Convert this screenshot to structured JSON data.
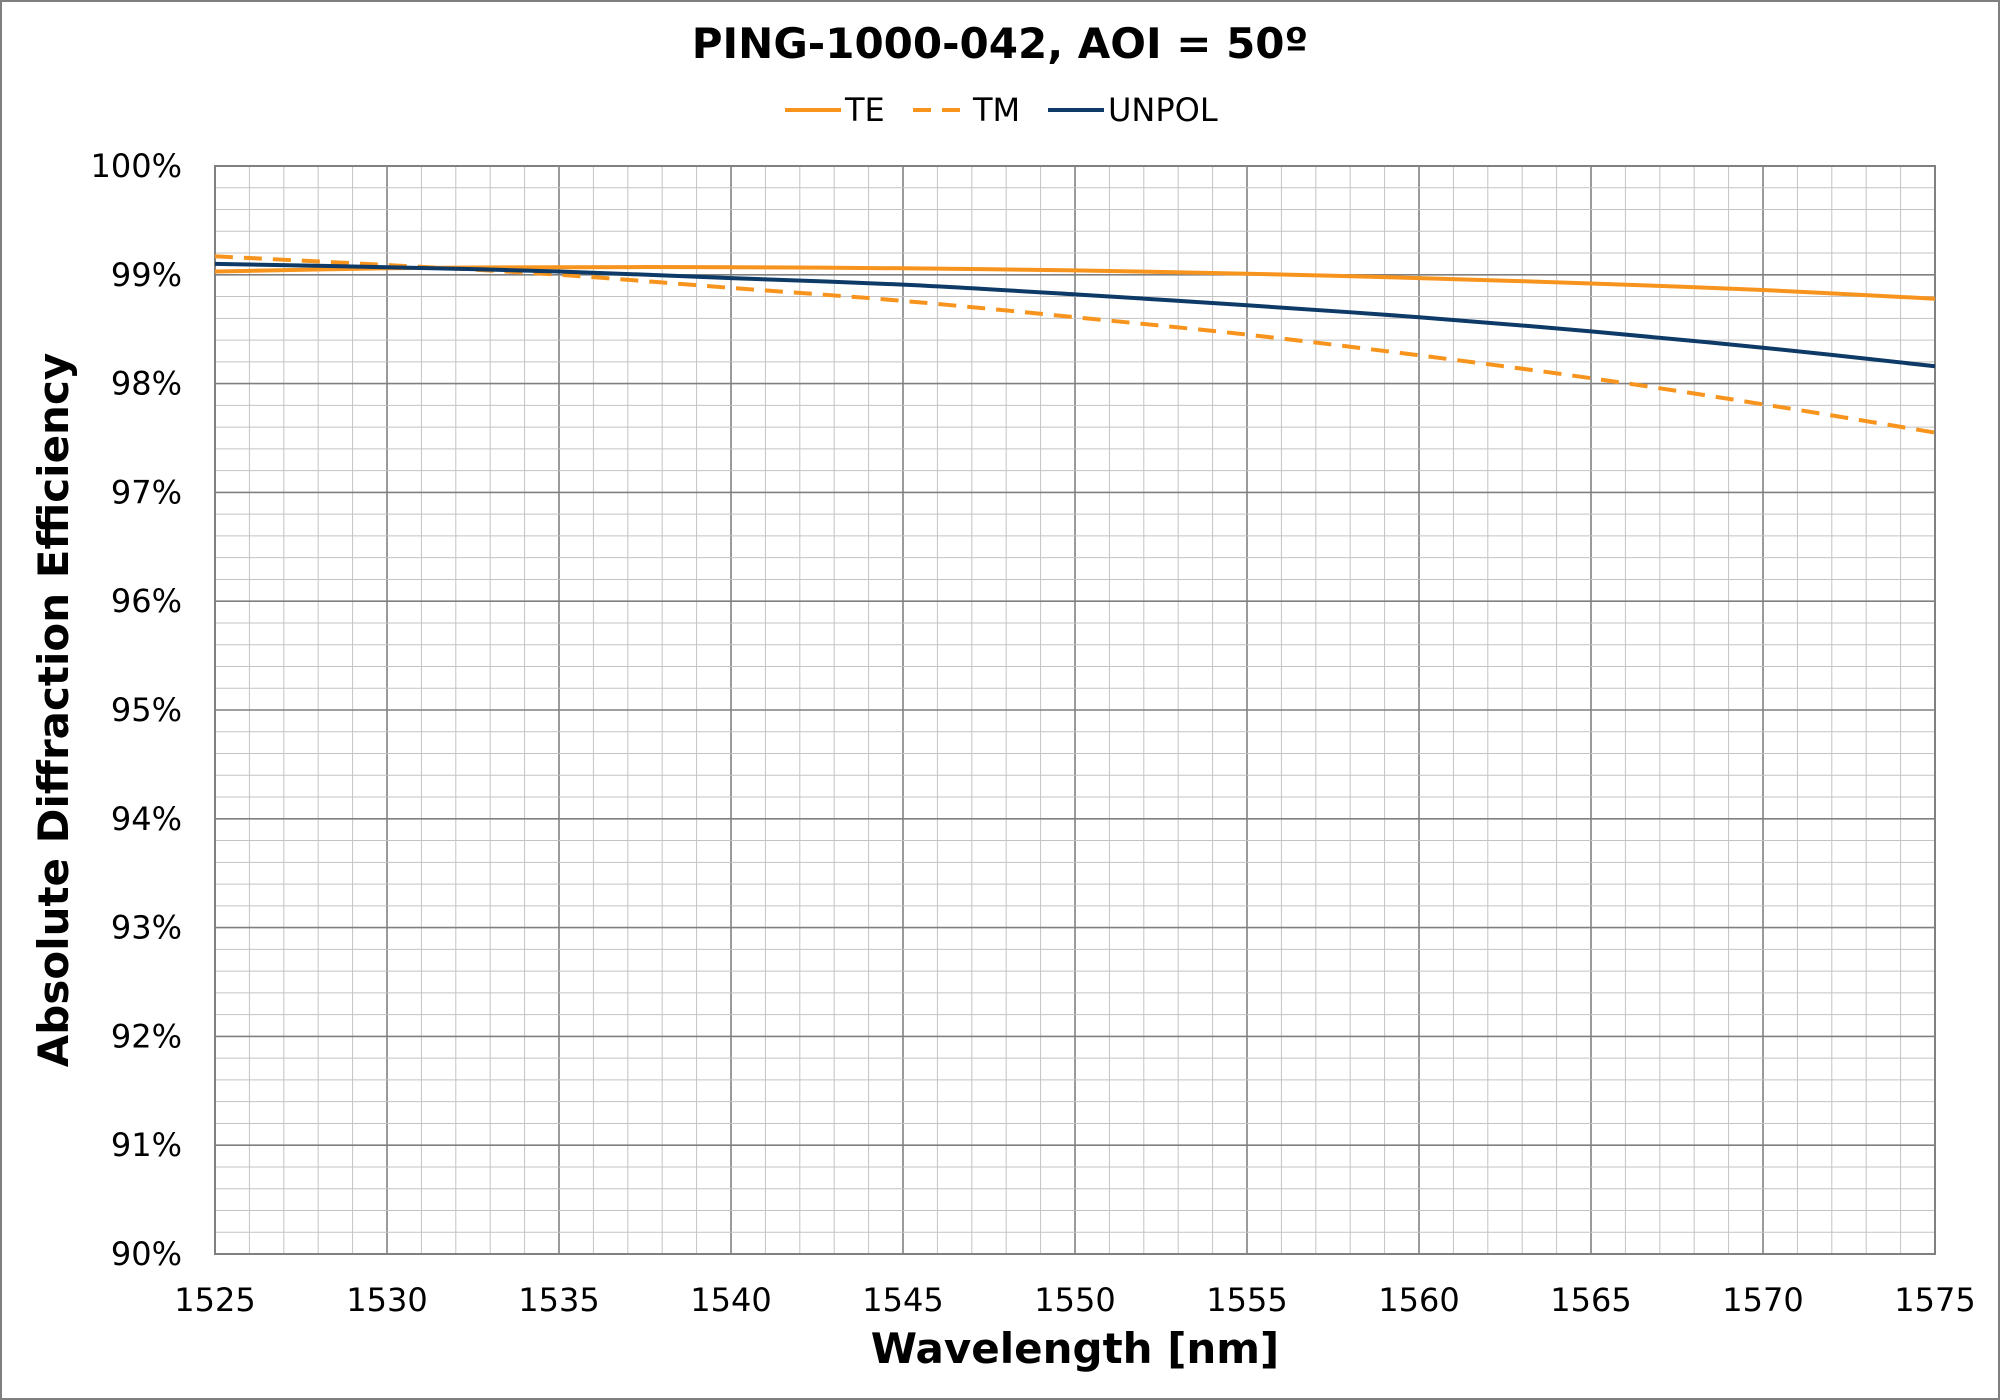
{
  "chart_data": {
    "type": "line",
    "title": "PING-1000-042, AOI = 50º",
    "xlabel": "Wavelength [nm]",
    "ylabel": "Absolute Diffraction Efficiency",
    "xlim": [
      1525,
      1575
    ],
    "ylim": [
      90,
      100
    ],
    "x_ticks": [
      "1525",
      "1530",
      "1535",
      "1540",
      "1545",
      "1550",
      "1555",
      "1560",
      "1565",
      "1570",
      "1575"
    ],
    "y_ticks": [
      "90%",
      "91%",
      "92%",
      "93%",
      "94%",
      "95%",
      "96%",
      "97%",
      "98%",
      "99%",
      "100%"
    ],
    "grid": true,
    "legend_position": "top",
    "series": [
      {
        "name": "TE",
        "color": "#f7941d",
        "dash": "solid",
        "x": [
          1525,
          1530,
          1535,
          1540,
          1545,
          1550,
          1555,
          1560,
          1565,
          1570,
          1575
        ],
        "y": [
          99.03,
          99.06,
          99.07,
          99.07,
          99.06,
          99.04,
          99.01,
          98.97,
          98.92,
          98.86,
          98.78
        ]
      },
      {
        "name": "TM",
        "color": "#f7941d",
        "dash": "dashed",
        "x": [
          1525,
          1530,
          1535,
          1540,
          1545,
          1550,
          1555,
          1560,
          1565,
          1570,
          1575
        ],
        "y": [
          99.17,
          99.09,
          99.0,
          98.88,
          98.76,
          98.61,
          98.45,
          98.26,
          98.05,
          97.81,
          97.55
        ]
      },
      {
        "name": "UNPOL",
        "color": "#0d3a66",
        "dash": "solid",
        "x": [
          1525,
          1530,
          1535,
          1540,
          1545,
          1550,
          1555,
          1560,
          1565,
          1570,
          1575
        ],
        "y": [
          99.1,
          99.07,
          99.03,
          98.97,
          98.91,
          98.82,
          98.72,
          98.61,
          98.48,
          98.33,
          98.16
        ]
      }
    ]
  }
}
